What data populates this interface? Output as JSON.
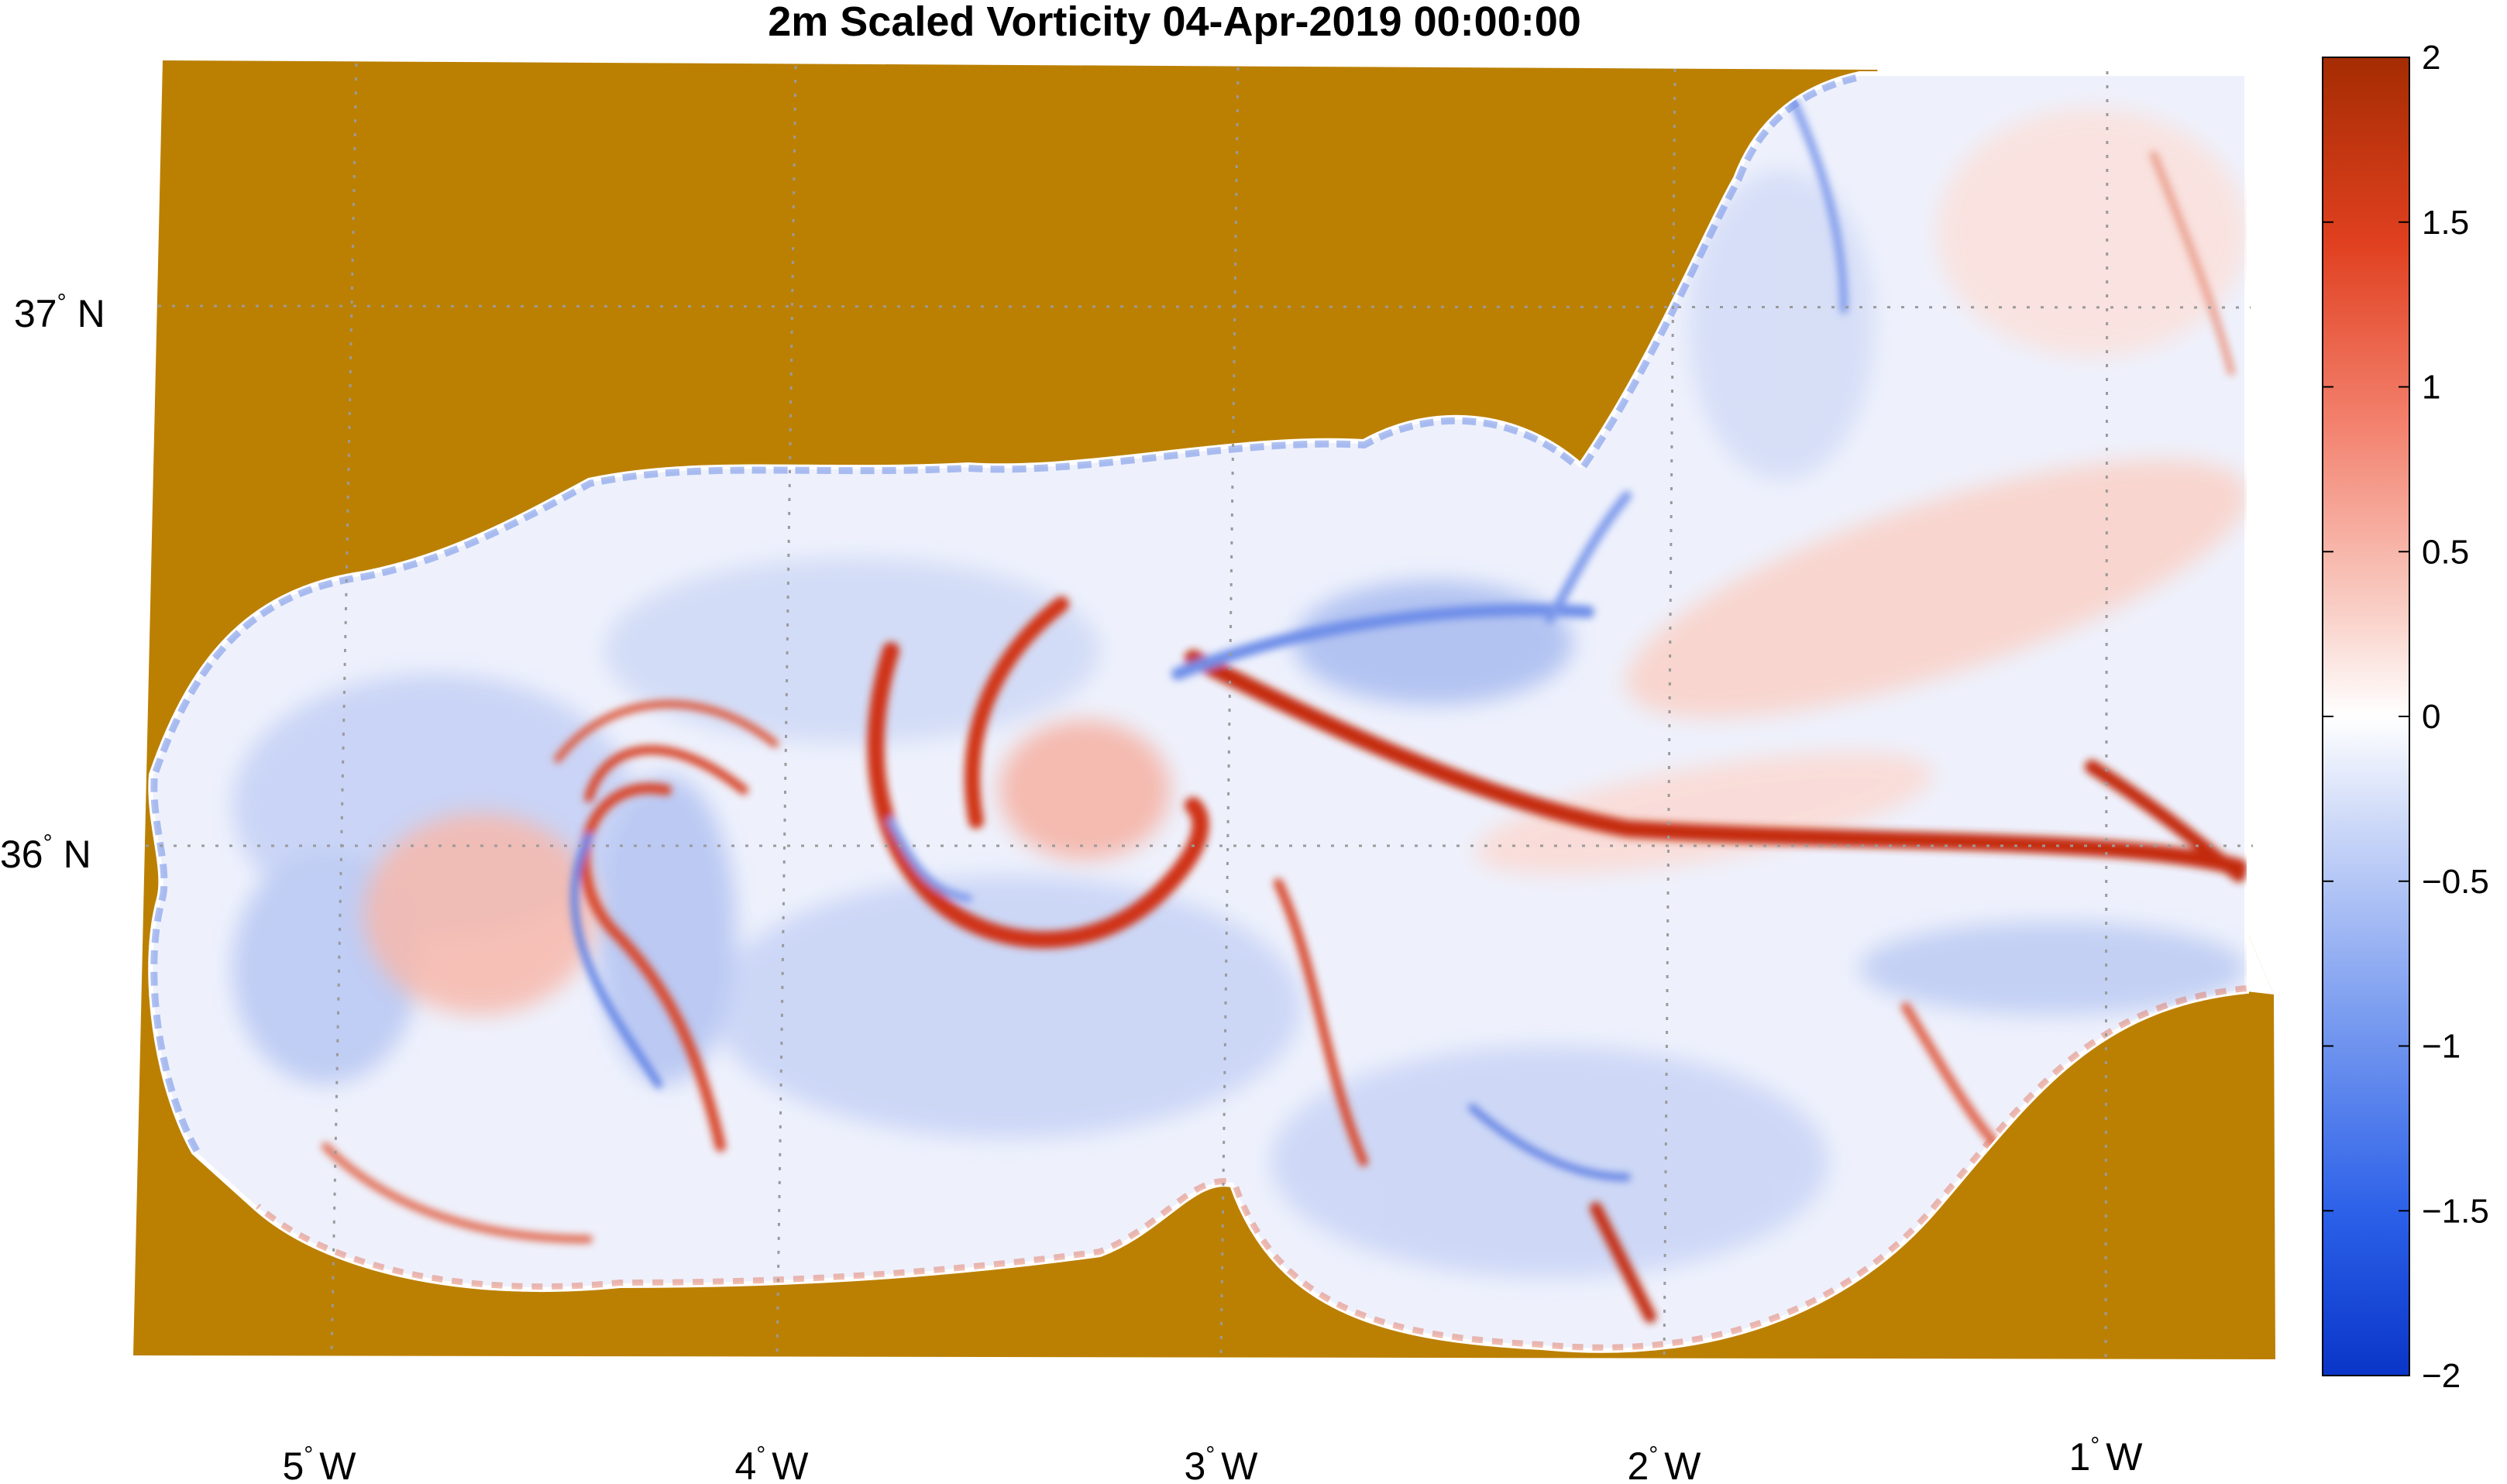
{
  "figure": {
    "title": "2m Scaled Vorticity  04-Apr-2019 00:00:00"
  },
  "map": {
    "land_color": "#bb8002",
    "grid_lines": true,
    "grid_style": "dotted",
    "longitude_ticks": [
      {
        "value": -5,
        "deg": "5",
        "hemi": "W"
      },
      {
        "value": -4,
        "deg": "4",
        "hemi": "W"
      },
      {
        "value": -3,
        "deg": "3",
        "hemi": "W"
      },
      {
        "value": -2,
        "deg": "2",
        "hemi": "W"
      },
      {
        "value": -1,
        "deg": "1",
        "hemi": "W"
      }
    ],
    "latitude_ticks": [
      {
        "value": 37,
        "deg": "37",
        "hemi": "N"
      },
      {
        "value": 36,
        "deg": "36",
        "hemi": "N"
      }
    ]
  },
  "colorbar": {
    "min": -2,
    "max": 2,
    "ticks": [
      "2",
      "1.5",
      "1",
      "0.5",
      "0",
      "−0.5",
      "−1",
      "−1.5",
      "−2"
    ],
    "colormap": "blue-white-red diverging",
    "color_min": "#0a35c8",
    "color_mid": "#ffffff",
    "color_max": "#a52c02"
  },
  "chart_data": {
    "type": "heatmap",
    "title": "2m Scaled Vorticity  04-Apr-2019 00:00:00",
    "variable": "2m Scaled Vorticity",
    "date": "04-Apr-2019 00:00:00",
    "xlabel": "",
    "ylabel": "",
    "x_ticks": [
      "5° W",
      "4° W",
      "3° W",
      "2° W",
      "1° W"
    ],
    "y_ticks": [
      "37° N",
      "36° N"
    ],
    "color_range": [
      -2,
      2
    ],
    "colorbar_ticks": [
      2,
      1.5,
      1,
      0.5,
      0,
      -0.5,
      -1,
      -1.5,
      -2
    ],
    "grid": true,
    "colorbar_position": "right"
  }
}
